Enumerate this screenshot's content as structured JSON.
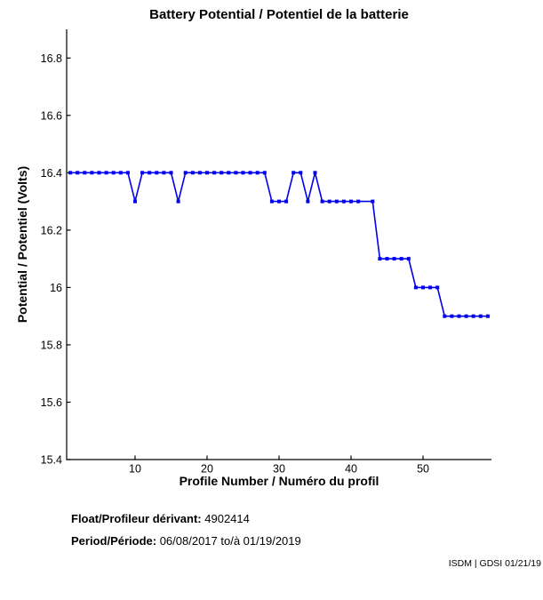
{
  "chart_data": {
    "type": "line",
    "title": "Battery Potential / Potentiel de la batterie",
    "xlabel": "Profile Number / Numéro du profil",
    "ylabel": "Potential / Potentiel (Volts)",
    "xlim": [
      0.5,
      59.5
    ],
    "ylim": [
      15.4,
      16.9
    ],
    "grid": false,
    "legend": null,
    "xticks": [
      10,
      20,
      30,
      40,
      50
    ],
    "yticks": {
      "values": [
        16.8,
        16.6,
        16.4,
        16.2,
        16,
        15.8,
        15.6,
        15.4
      ],
      "labels": [
        "16.8",
        "16.6",
        "16.4",
        "16.2",
        "16",
        "15.8",
        "15.6",
        "15.4"
      ]
    },
    "series": [
      {
        "name": "battery-potential-volts",
        "color": "#0000EE",
        "marker": "square",
        "x": [
          1,
          2,
          3,
          4,
          5,
          6,
          7,
          8,
          9,
          10,
          11,
          12,
          13,
          14,
          15,
          16,
          17,
          18,
          19,
          20,
          21,
          22,
          23,
          24,
          25,
          26,
          27,
          28,
          29,
          30,
          31,
          32,
          33,
          34,
          35,
          36,
          37,
          38,
          39,
          40,
          41,
          43,
          44,
          45,
          46,
          47,
          48,
          49,
          50,
          51,
          52,
          53,
          54,
          55,
          56,
          57,
          58,
          59
        ],
        "y": [
          16.4,
          16.4,
          16.4,
          16.4,
          16.4,
          16.4,
          16.4,
          16.4,
          16.4,
          16.3,
          16.4,
          16.4,
          16.4,
          16.4,
          16.4,
          16.3,
          16.4,
          16.4,
          16.4,
          16.4,
          16.4,
          16.4,
          16.4,
          16.4,
          16.4,
          16.4,
          16.4,
          16.4,
          16.3,
          16.3,
          16.3,
          16.4,
          16.4,
          16.3,
          16.4,
          16.3,
          16.3,
          16.3,
          16.3,
          16.3,
          16.3,
          16.3,
          16.1,
          16.1,
          16.1,
          16.1,
          16.1,
          16.0,
          16.0,
          16.0,
          16.0,
          15.9,
          15.9,
          15.9,
          15.9,
          15.9,
          15.9,
          15.9
        ]
      }
    ]
  },
  "footer": {
    "float_label": "Float/Profileur dérivant:",
    "float_value": "4902414",
    "period_label": "Period/Période:",
    "period_value": "06/08/2017 to/à 01/19/2019"
  },
  "watermark": "ISDM | GDSI 01/21/19"
}
